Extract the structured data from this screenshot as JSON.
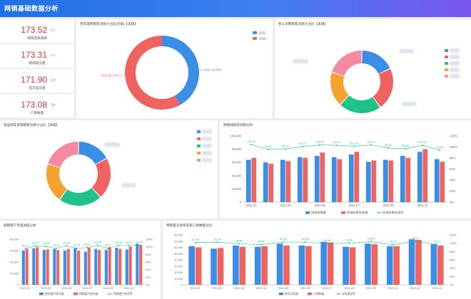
{
  "header": {
    "title": "网销基础数据分析"
  },
  "kpis": [
    {
      "value": "173.52",
      "unit": "万人",
      "label": "网销成果客群"
    },
    {
      "value": "173.31",
      "unit": "万人",
      "label": "网销成交量"
    },
    {
      "value": "171.90",
      "unit": "万件",
      "label": "首次成交量"
    },
    {
      "value": "173.08",
      "unit": "万件",
      "label": "订单数量"
    }
  ],
  "panels": {
    "yearly_pie": {
      "title": "各年度网销客流统计占比[万级]【末级】"
    },
    "region_pie": {
      "title": "各公司网销客流统计占比【末级】"
    },
    "channel_pie": {
      "title": "各品牌车系网销客流统计占比【末级】"
    },
    "monthly_trend": {
      "title": "网络线索有效性分析"
    },
    "customer_trend": {
      "title": "网销客户月度进度分析"
    },
    "first_trade": {
      "title": "网销首次试驾签单订单数量对比"
    }
  },
  "colors": {
    "blue": "#3a8ee6",
    "red": "#ef6360",
    "green": "#1ec28a",
    "orange": "#f5a22e",
    "pink": "#f48aa0"
  },
  "chart_data": [
    {
      "type": "pie",
      "name": "yearly",
      "slices": [
        {
          "label": "2021 41.86%",
          "legend": "2021",
          "value": 41.86,
          "color": "#3a8ee6"
        },
        {
          "label": "2022 58.14%",
          "legend": "2022",
          "value": 58.14,
          "color": "#ef6360"
        }
      ]
    },
    {
      "type": "pie",
      "name": "region",
      "slices": [
        {
          "value": 18,
          "color": "#3a8ee6"
        },
        {
          "value": 22,
          "color": "#ef6360"
        },
        {
          "value": 22,
          "color": "#1ec28a"
        },
        {
          "value": 18,
          "color": "#f5a22e"
        },
        {
          "value": 20,
          "color": "#f48aa0"
        }
      ]
    },
    {
      "type": "pie",
      "name": "channel",
      "slices": [
        {
          "value": 17,
          "color": "#3a8ee6"
        },
        {
          "value": 21,
          "color": "#ef6360"
        },
        {
          "value": 22,
          "color": "#1ec28a"
        },
        {
          "value": 20,
          "color": "#f5a22e"
        },
        {
          "value": 20,
          "color": "#f48aa0"
        }
      ]
    },
    {
      "type": "bar",
      "name": "monthly",
      "categories": [
        "2021-01",
        "2021-02",
        "2021-03",
        "2021-04",
        "2021-05",
        "2021-06",
        "2021-07",
        "2021-08",
        "2021-09",
        "2021-10",
        "2021-11",
        "2021-12"
      ],
      "xticks": [
        "2021-01",
        "2021-03",
        "2021-05",
        "2021-07",
        "2021-09",
        "2021-11"
      ],
      "yticks": [
        "0",
        "20,000",
        "40,000",
        "60,000",
        "80,000",
        "100,000"
      ],
      "y2ticks": [
        "0%",
        "20%",
        "40%",
        "60%",
        "80%",
        "100%",
        "120%"
      ],
      "ylim": [
        0,
        100000
      ],
      "y2lim": [
        0,
        120
      ],
      "series": [
        {
          "name": "网销成果量",
          "values": [
            64000,
            60000,
            64000,
            68000,
            70000,
            68000,
            72000,
            61000,
            64000,
            70000,
            76000,
            65000
          ],
          "color": "#3a8ee6"
        },
        {
          "name": "网销成果有效量",
          "values": [
            67000,
            58000,
            62000,
            67000,
            75000,
            65000,
            76000,
            63000,
            63000,
            67000,
            80000,
            61000
          ],
          "color": "#ef6360"
        },
        {
          "name": "网销成果有效率",
          "values": [
            104.51,
            95.69,
            96.26,
            100.77,
            103.68,
            103.11,
            101.49,
            103.71,
            98.19,
            96.88,
            103.11,
            94.28
          ],
          "color": "#1ec28a"
        }
      ],
      "labels": [
        "104.51",
        "95.69",
        "96.26",
        "100.77",
        "103.68",
        "103.11",
        "101.49",
        "103.71",
        "98.19",
        "96.88",
        "103.11",
        "94.28"
      ]
    },
    {
      "type": "bar",
      "name": "customer",
      "categories": [
        "2021-01",
        "2021-02",
        "2021-03",
        "2021-04",
        "2021-05",
        "2021-06",
        "2021-07",
        "2021-08",
        "2021-09",
        "2021-10",
        "2021-11",
        "2021-12"
      ],
      "xticks": [
        "2021-01",
        "2021-03",
        "2021-05",
        "2021-07",
        "2021-09",
        "2021-11"
      ],
      "yticks": [
        "0",
        "20,000",
        "40,000",
        "60,000",
        "80,000"
      ],
      "y2ticks": [
        "0%",
        "20%",
        "40%",
        "60%",
        "80%",
        "100%",
        "120%"
      ],
      "ylim": [
        0,
        80000
      ],
      "y2lim": [
        0,
        120
      ],
      "series": [
        {
          "name": "首次客户成交量",
          "values": [
            60000,
            64000,
            61000,
            63000,
            60000,
            64000,
            58000,
            63000,
            61000,
            65000,
            62000,
            72000
          ],
          "color": "#3a8ee6"
        },
        {
          "name": "网销客户成交量",
          "values": [
            63000,
            66000,
            62000,
            61000,
            63000,
            60000,
            65000,
            61000,
            66000,
            63000,
            67000,
            70000
          ],
          "color": "#ef6360"
        },
        {
          "name": "网销客户成交率",
          "values": [
            95.07,
            102.44,
            100.95,
            96.09,
            102.16,
            95.76,
            98.21,
            103.95,
            96.11,
            103.38,
            103.11,
            103.9
          ],
          "color": "#1ec28a"
        }
      ],
      "labels": [
        "95.07",
        "102.44",
        "100.95",
        "96.09",
        "102.16",
        "95.76",
        "98.21",
        "103.95",
        "96.11",
        "103.38",
        "103.11",
        "103.90"
      ]
    },
    {
      "type": "bar",
      "name": "first_trade",
      "categories": [
        "2021-01",
        "2021-02",
        "2021-03",
        "2021-04",
        "2021-05",
        "2021-06",
        "2021-07",
        "2021-08",
        "2021-09",
        "2021-10",
        "2021-11",
        "2021-12"
      ],
      "xticks": [
        "2021-01",
        "2021-02",
        "2021-03",
        "2021-04",
        "2021-05",
        "2021-06",
        "2021-07",
        "2021-08",
        "2021-09",
        "2021-10",
        "2021-11",
        "2021-12"
      ],
      "yticks": [
        "0",
        "10,000",
        "20,000",
        "30,000",
        "40,000",
        "50,000",
        "60,000",
        "70,000",
        "80,000"
      ],
      "y2ticks": [
        "0%",
        "20%",
        "40%",
        "60%",
        "80%",
        "100%",
        "120%"
      ],
      "ylim": [
        0,
        80000
      ],
      "y2lim": [
        0,
        120
      ],
      "series": [
        {
          "name": "首次试驾量",
          "values": [
            62000,
            58000,
            63000,
            61000,
            66000,
            63000,
            69000,
            61000,
            66000,
            62000,
            73000,
            65000
          ],
          "color": "#3a8ee6"
        },
        {
          "name": "订单数量",
          "values": [
            60000,
            59000,
            61000,
            62000,
            63000,
            62000,
            68000,
            60000,
            65000,
            62000,
            72000,
            63000
          ],
          "color": "#ef6360"
        },
        {
          "name": "试驾成交率",
          "values": [
            101.6,
            102.24,
            98.98,
            96.48,
            102.66,
            102.66,
            99.45,
            99.98,
            103.54,
            96.31,
            104.97,
            97.17
          ],
          "color": "#1ec28a"
        }
      ],
      "labels": [
        "101.60",
        "102.24",
        "98.98",
        "96.48",
        "102.66",
        "102.66",
        "99.45",
        "99.98",
        "103.54",
        "96.31",
        "104.97",
        "97.17"
      ]
    }
  ]
}
